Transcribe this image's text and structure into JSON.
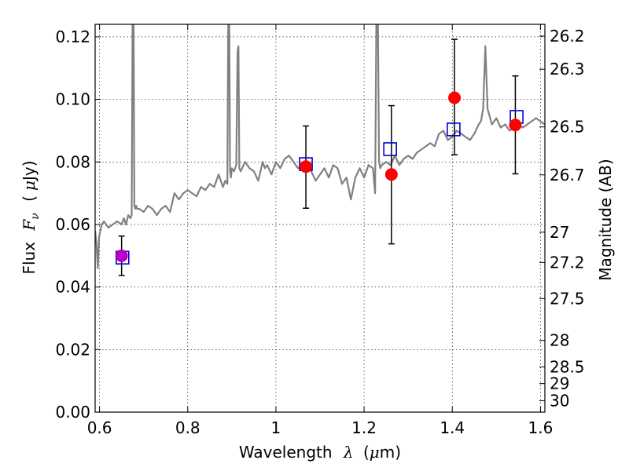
{
  "chart_data": {
    "type": "scatter",
    "xlabel": {
      "prefix": "Wavelength",
      "symbol": "λ",
      "unit_open": "(",
      "unit_mu": "μ",
      "unit_rest": "m)"
    },
    "ylabel": {
      "prefix": "Flux",
      "symbol": "F",
      "subscript": "ν",
      "unit_open": "(",
      "unit_mu": "μ",
      "unit_rest": "Jy)"
    },
    "y2label": "Magnitude (AB)",
    "xlim": [
      0.59,
      1.61
    ],
    "ylim": [
      0.0,
      0.124
    ],
    "grid": true,
    "x_ticks": [
      {
        "v": 0.6,
        "label": "0.6"
      },
      {
        "v": 0.8,
        "label": "0.8"
      },
      {
        "v": 1.0,
        "label": "1"
      },
      {
        "v": 1.2,
        "label": "1.2"
      },
      {
        "v": 1.4,
        "label": "1.4"
      },
      {
        "v": 1.6,
        "label": "1.6"
      }
    ],
    "y_ticks": [
      {
        "v": 0.0,
        "label": "0.00"
      },
      {
        "v": 0.02,
        "label": "0.02"
      },
      {
        "v": 0.04,
        "label": "0.04"
      },
      {
        "v": 0.06,
        "label": "0.06"
      },
      {
        "v": 0.08,
        "label": "0.08"
      },
      {
        "v": 0.1,
        "label": "0.10"
      },
      {
        "v": 0.12,
        "label": "0.12"
      }
    ],
    "mag_ticks": [
      {
        "v": 26.2,
        "label": "26.2"
      },
      {
        "v": 26.3,
        "label": "26.3"
      },
      {
        "v": 26.5,
        "label": "26.5"
      },
      {
        "v": 26.7,
        "label": "26.7"
      },
      {
        "v": 27.0,
        "label": "27"
      },
      {
        "v": 27.2,
        "label": "27.2"
      },
      {
        "v": 27.5,
        "label": "27.5"
      },
      {
        "v": 28.0,
        "label": "28"
      },
      {
        "v": 28.5,
        "label": "28.5"
      },
      {
        "v": 29.0,
        "label": "29"
      },
      {
        "v": 30.0,
        "label": "30"
      }
    ],
    "series": [
      {
        "kind": "spectrum",
        "color": "#808080",
        "x": [
          0.59,
          0.593,
          0.596,
          0.599,
          0.602,
          0.605,
          0.61,
          0.62,
          0.63,
          0.64,
          0.65,
          0.655,
          0.66,
          0.665,
          0.67,
          0.673,
          0.675,
          0.677,
          0.679,
          0.681,
          0.683,
          0.685,
          0.69,
          0.7,
          0.71,
          0.72,
          0.73,
          0.74,
          0.75,
          0.76,
          0.77,
          0.78,
          0.79,
          0.8,
          0.81,
          0.82,
          0.83,
          0.84,
          0.85,
          0.86,
          0.87,
          0.88,
          0.885,
          0.89,
          0.892,
          0.894,
          0.896,
          0.898,
          0.9,
          0.905,
          0.91,
          0.913,
          0.915,
          0.917,
          0.92,
          0.93,
          0.94,
          0.95,
          0.96,
          0.97,
          0.975,
          0.98,
          0.99,
          1.0,
          1.01,
          1.02,
          1.03,
          1.04,
          1.05,
          1.06,
          1.07,
          1.08,
          1.09,
          1.1,
          1.11,
          1.12,
          1.13,
          1.14,
          1.15,
          1.16,
          1.17,
          1.18,
          1.19,
          1.2,
          1.21,
          1.22,
          1.225,
          1.228,
          1.231,
          1.234,
          1.237,
          1.24,
          1.25,
          1.26,
          1.27,
          1.28,
          1.29,
          1.3,
          1.31,
          1.32,
          1.33,
          1.34,
          1.35,
          1.36,
          1.37,
          1.38,
          1.39,
          1.4,
          1.41,
          1.42,
          1.43,
          1.44,
          1.45,
          1.46,
          1.465,
          1.47,
          1.475,
          1.48,
          1.49,
          1.5,
          1.51,
          1.52,
          1.53,
          1.54,
          1.55,
          1.56,
          1.57,
          1.58,
          1.59,
          1.6,
          1.61
        ],
        "y": [
          0.058,
          0.054,
          0.046,
          0.056,
          0.058,
          0.06,
          0.061,
          0.059,
          0.06,
          0.061,
          0.06,
          0.062,
          0.06,
          0.063,
          0.062,
          0.063,
          0.13,
          0.13,
          0.066,
          0.065,
          0.066,
          0.065,
          0.065,
          0.064,
          0.066,
          0.065,
          0.063,
          0.065,
          0.066,
          0.064,
          0.07,
          0.068,
          0.07,
          0.071,
          0.07,
          0.069,
          0.072,
          0.071,
          0.073,
          0.072,
          0.076,
          0.072,
          0.074,
          0.073,
          0.13,
          0.13,
          0.077,
          0.075,
          0.078,
          0.077,
          0.079,
          0.115,
          0.117,
          0.078,
          0.077,
          0.08,
          0.078,
          0.077,
          0.074,
          0.08,
          0.078,
          0.079,
          0.076,
          0.08,
          0.078,
          0.081,
          0.082,
          0.08,
          0.078,
          0.079,
          0.078,
          0.077,
          0.074,
          0.076,
          0.078,
          0.075,
          0.079,
          0.078,
          0.073,
          0.075,
          0.068,
          0.075,
          0.078,
          0.075,
          0.079,
          0.078,
          0.07,
          0.13,
          0.13,
          0.08,
          0.078,
          0.079,
          0.08,
          0.079,
          0.082,
          0.079,
          0.081,
          0.082,
          0.081,
          0.083,
          0.084,
          0.085,
          0.086,
          0.085,
          0.089,
          0.09,
          0.087,
          0.088,
          0.09,
          0.089,
          0.088,
          0.087,
          0.089,
          0.092,
          0.093,
          0.097,
          0.117,
          0.097,
          0.092,
          0.094,
          0.091,
          0.092,
          0.09,
          0.091,
          0.092,
          0.091,
          0.092,
          0.093,
          0.094,
          0.093,
          0.092
        ]
      },
      {
        "kind": "errorbar",
        "color": "#000000",
        "x": [
          0.65,
          1.068,
          1.262,
          1.405,
          1.543
        ],
        "y": [
          0.05,
          0.0785,
          0.076,
          0.1005,
          0.0918
        ],
        "yerr_low": [
          0.0063,
          0.0133,
          0.0222,
          0.0182,
          0.0156
        ],
        "yerr_high": [
          0.0063,
          0.013,
          0.022,
          0.0187,
          0.0157
        ]
      },
      {
        "kind": "squares",
        "color": "#0000cc",
        "x": [
          0.652,
          1.068,
          1.259,
          1.403,
          1.546
        ],
        "y": [
          0.0494,
          0.0793,
          0.0841,
          0.0904,
          0.0944
        ]
      },
      {
        "kind": "circles",
        "color": "#ff0000",
        "x": [
          1.068,
          1.262,
          1.405,
          1.543
        ],
        "y": [
          0.0785,
          0.076,
          0.1005,
          0.0918
        ]
      },
      {
        "kind": "circles",
        "color": "#b400c8",
        "x": [
          0.65
        ],
        "y": [
          0.05
        ]
      }
    ]
  }
}
